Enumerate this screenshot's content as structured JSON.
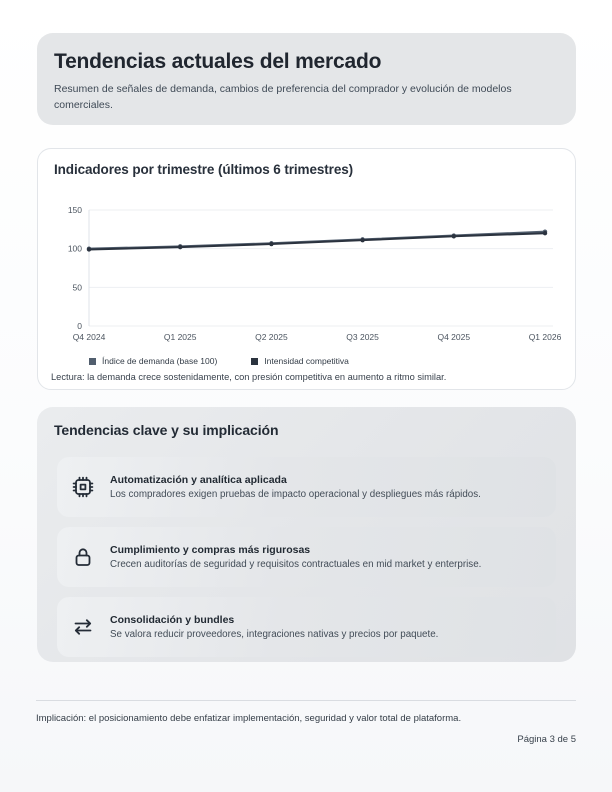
{
  "header": {
    "title": "Tendencias actuales del mercado",
    "subtitle": "Resumen de señales de demanda, cambios de preferencia del comprador y evolución de modelos comerciales."
  },
  "chart_card": {
    "title": "Indicadores por trimestre (últimos 6 trimestres)"
  },
  "chart_data": {
    "type": "line",
    "title": "Indicadores por trimestre (últimos 6 trimestres)",
    "categories": [
      "Q4 2024",
      "Q1 2025",
      "Q2 2025",
      "Q3 2025",
      "Q4 2025",
      "Q1 2026"
    ],
    "series": [
      {
        "name": "Índice de demanda (base 100)",
        "color": "#515e6e",
        "values": [
          100,
          103,
          107,
          112,
          117,
          122
        ]
      },
      {
        "name": "Intensidad competitiva",
        "color": "#2b333f",
        "values": [
          99,
          102,
          106,
          111,
          116,
          120
        ]
      }
    ],
    "xlabel": "",
    "ylabel": "",
    "ylim": [
      0,
      150
    ],
    "yticks": [
      0,
      50,
      100,
      150
    ],
    "grid": true,
    "legend_position": "bottom",
    "note": "Lectura: la demanda crece sostenidamente, con presión competitiva en aumento a ritmo similar.",
    "axis_color": "#dfe3e8",
    "grid_color": "#edeff2",
    "tick_label_color": "#4b545f"
  },
  "trends": {
    "heading": "Tendencias clave y su implicación",
    "items": [
      {
        "icon": "cpu-icon",
        "title": "Automatización y analítica aplicada",
        "desc": "Los compradores exigen pruebas de impacto operacional y despliegues más rápidos."
      },
      {
        "icon": "lock-icon",
        "title": "Cumplimiento y compras más rigurosas",
        "desc": "Crecen auditorías de seguridad y requisitos contractuales en mid market y enterprise."
      },
      {
        "icon": "transfer-arrows-icon",
        "title": "Consolidación y bundles",
        "desc": "Se valora reducir proveedores, integraciones nativas y precios por paquete."
      }
    ]
  },
  "footer": {
    "implication": "Implicación: el posicionamiento debe enfatizar implementación, seguridad y valor total de plataforma.",
    "page_label": "Página 3 de 5"
  }
}
